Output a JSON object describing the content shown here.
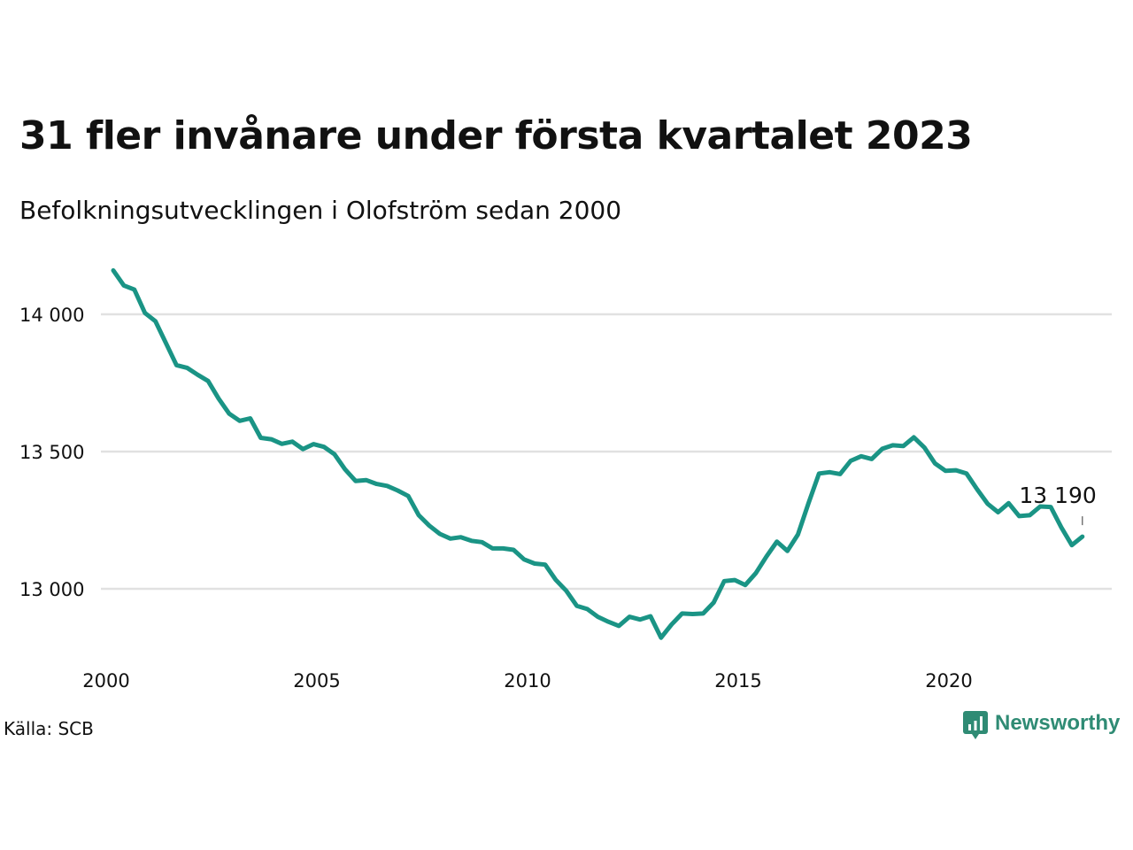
{
  "title": "31 fler invånare under första kvartalet 2023",
  "subtitle": "Befolkningsutvecklingen i Olofström sedan 2000",
  "source": "Källa: SCB",
  "brand": {
    "name": "Newsworthy",
    "icon": "newsworthy-logo-icon",
    "color": "#2f8b74"
  },
  "colors": {
    "line": "#1a9485",
    "grid": "#e1e1e1",
    "text": "#111111"
  },
  "chart_data": {
    "type": "line",
    "title": "31 fler invånare under första kvartalet 2023",
    "subtitle": "Befolkningsutvecklingen i Olofström sedan 2000",
    "xlabel": "",
    "ylabel": "",
    "xlim": [
      2000,
      2023.75
    ],
    "ylim": [
      12800,
      14180
    ],
    "grid": true,
    "x_ticks": [
      2000,
      2005,
      2010,
      2015,
      2020
    ],
    "x_tick_labels": [
      "2000",
      "2005",
      "2010",
      "2015",
      "2020"
    ],
    "y_ticks": [
      13000,
      13500,
      14000
    ],
    "y_tick_labels": [
      "13 000",
      "13 500",
      "14 000"
    ],
    "end_label": "13 190",
    "series": [
      {
        "values": [
          14160,
          14105,
          14090,
          14005,
          13975,
          13895,
          13815,
          13805,
          13780,
          13757,
          13693,
          13638,
          13612,
          13621,
          13550,
          13545,
          13528,
          13536,
          13509,
          13527,
          13517,
          13490,
          13435,
          13393,
          13396,
          13382,
          13375,
          13358,
          13338,
          13268,
          13230,
          13200,
          13183,
          13188,
          13175,
          13170,
          13147,
          13147,
          13142,
          13107,
          13092,
          13088,
          13033,
          12993,
          12938,
          12926,
          12898,
          12880,
          12865,
          12898,
          12888,
          12900,
          12822,
          12870,
          12910,
          12908,
          12910,
          12950,
          13028,
          13032,
          13014,
          13057,
          13117,
          13172,
          13138,
          13198,
          13312,
          13420,
          13425,
          13418,
          13466,
          13483,
          13473,
          13510,
          13523,
          13520,
          13552,
          13515,
          13457,
          13430,
          13432,
          13420,
          13363,
          13310,
          13279,
          13312,
          13265,
          13268,
          13300,
          13298,
          13224,
          13159,
          13190
        ]
      }
    ]
  }
}
